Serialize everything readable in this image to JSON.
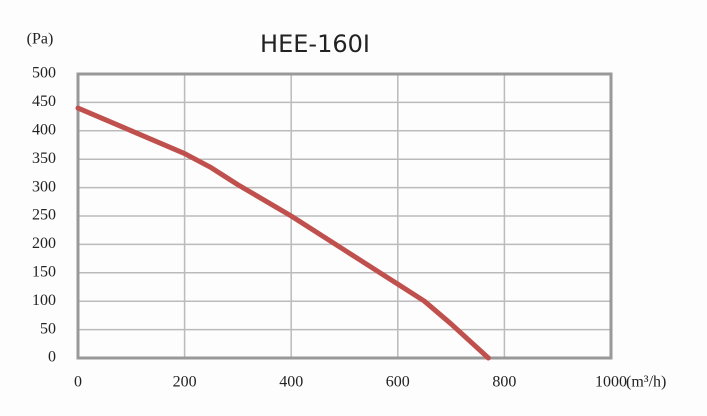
{
  "chart_data": {
    "type": "line",
    "title": "HEE-160I",
    "ylabel": "(Pa)",
    "xlabel": "(m³/h)",
    "x": [
      0,
      100,
      200,
      250,
      300,
      400,
      500,
      600,
      650,
      700,
      770
    ],
    "series": [
      {
        "name": "HEE-160I",
        "color": "#c0504d",
        "values": [
          440,
          400,
          360,
          335,
          305,
          250,
          190,
          130,
          100,
          60,
          0
        ]
      }
    ],
    "xlim": [
      0,
      1000
    ],
    "xticks": [
      0,
      200,
      400,
      600,
      800,
      1000
    ],
    "ylim": [
      0,
      500
    ],
    "yticks": [
      0,
      50,
      100,
      150,
      200,
      250,
      300,
      350,
      400,
      450,
      500
    ],
    "grid": true
  }
}
